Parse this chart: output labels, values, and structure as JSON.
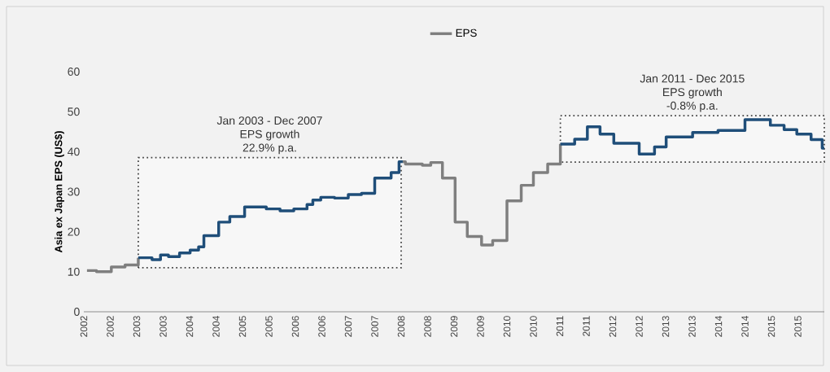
{
  "chart_data": {
    "type": "step",
    "ylabel": "Asia ex Japan EPS (US$)",
    "xlim": [
      2002,
      2016
    ],
    "ylim": [
      0,
      60
    ],
    "yticks": [
      0,
      10,
      20,
      30,
      40,
      50,
      60
    ],
    "xticks": [
      {
        "value": 2002,
        "label": "2002"
      },
      {
        "value": 2002.5,
        "label": "2002"
      },
      {
        "value": 2003,
        "label": "2003"
      },
      {
        "value": 2003.5,
        "label": "2003"
      },
      {
        "value": 2004,
        "label": "2004"
      },
      {
        "value": 2004.5,
        "label": "2004"
      },
      {
        "value": 2005,
        "label": "2005"
      },
      {
        "value": 2005.5,
        "label": "2005"
      },
      {
        "value": 2006,
        "label": "2006"
      },
      {
        "value": 2006.5,
        "label": "2006"
      },
      {
        "value": 2007,
        "label": "2007"
      },
      {
        "value": 2007.5,
        "label": "2007"
      },
      {
        "value": 2008,
        "label": "2008"
      },
      {
        "value": 2008.5,
        "label": "2008"
      },
      {
        "value": 2009,
        "label": "2009"
      },
      {
        "value": 2009.5,
        "label": "2009"
      },
      {
        "value": 2010,
        "label": "2010"
      },
      {
        "value": 2010.5,
        "label": "2010"
      },
      {
        "value": 2011,
        "label": "2011"
      },
      {
        "value": 2011.5,
        "label": "2011"
      },
      {
        "value": 2012,
        "label": "2012"
      },
      {
        "value": 2012.5,
        "label": "2012"
      },
      {
        "value": 2013,
        "label": "2013"
      },
      {
        "value": 2013.5,
        "label": "2013"
      },
      {
        "value": 2014,
        "label": "2014"
      },
      {
        "value": 2014.5,
        "label": "2014"
      },
      {
        "value": 2015,
        "label": "2015"
      },
      {
        "value": 2015.5,
        "label": "2015"
      }
    ],
    "series": [
      {
        "name": "EPS",
        "color": "#7f7f7f",
        "x": [
          2002.06,
          2002.24,
          2002.52,
          2002.78,
          2003.03
        ],
        "values": [
          10.3,
          10.0,
          11.2,
          11.7,
          13.5
        ]
      },
      {
        "color": "#1f4e79",
        "x": [
          2003.03,
          2003.29,
          2003.45,
          2003.6,
          2003.81,
          2004.01,
          2004.17,
          2004.27,
          2004.55,
          2004.76,
          2005.04,
          2005.45,
          2005.71,
          2005.97,
          2006.22,
          2006.33,
          2006.48,
          2006.74,
          2007.0,
          2007.25,
          2007.5,
          2007.81,
          2007.96,
          2008.03
        ],
        "values": [
          13.5,
          13.0,
          14.2,
          13.8,
          14.7,
          15.4,
          16.2,
          19.0,
          22.4,
          23.8,
          26.2,
          25.7,
          25.2,
          25.7,
          26.8,
          27.9,
          28.6,
          28.4,
          29.3,
          29.6,
          33.4,
          34.8,
          37.5,
          37.5
        ]
      },
      {
        "color": "#7f7f7f",
        "x": [
          2008.03,
          2008.08,
          2008.4,
          2008.56,
          2008.78,
          2009.02,
          2009.25,
          2009.52,
          2009.73,
          2010.0,
          2010.27,
          2010.5,
          2010.77,
          2011.01
        ],
        "values": [
          37.5,
          36.9,
          36.6,
          37.3,
          33.4,
          22.4,
          18.8,
          16.7,
          17.8,
          27.7,
          31.6,
          34.8,
          36.9,
          41.9
        ]
      },
      {
        "color": "#1f4e79",
        "x": [
          2011.01,
          2011.28,
          2011.52,
          2011.76,
          2012.02,
          2012.5,
          2012.79,
          2013.01,
          2013.51,
          2013.99,
          2014.5,
          2014.98,
          2015.24,
          2015.48,
          2015.75,
          2015.96,
          2016.0
        ],
        "values": [
          41.9,
          43.1,
          46.2,
          44.4,
          42.1,
          39.4,
          41.2,
          43.7,
          44.8,
          45.3,
          48.0,
          46.6,
          45.5,
          44.4,
          43.0,
          40.9,
          40.9
        ]
      }
    ],
    "bands": [
      {
        "axis": "x",
        "from": 2003.03,
        "to": 2008.0,
        "label": "Jan 2003 - Dec 2007",
        "color": "#f7f7f7"
      },
      {
        "axis": "x",
        "from": 2011.01,
        "to": 2016.0,
        "label": "Jan 2011 - Dec 2015",
        "color": "#f7f7f7"
      }
    ],
    "annotations": [
      "EPS growth",
      "22.9% p.a.",
      "EPS growth",
      "-0.8% p.a."
    ],
    "legend": "top",
    "grid": false,
    "marker": "none",
    "line_style": "solid"
  }
}
